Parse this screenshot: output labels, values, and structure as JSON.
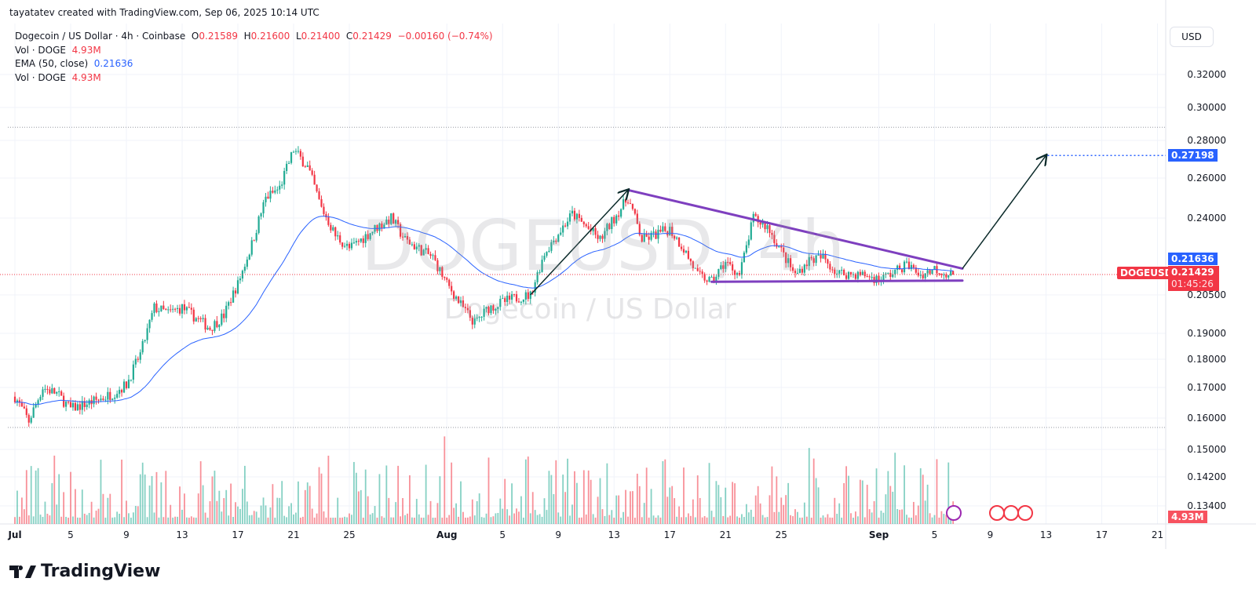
{
  "credit": "tayatatev created with TradingView.com, Sep 06, 2025 10:14 UTC",
  "legend": {
    "symbol": "Dogecoin / US Dollar · 4h · Coinbase",
    "o_label": "O",
    "o": "0.21589",
    "h_label": "H",
    "h": "0.21600",
    "l_label": "L",
    "l": "0.21400",
    "c_label": "C",
    "c": "0.21429",
    "change": "−0.00160 (−0.74%)",
    "vol_label": "Vol · DOGE",
    "vol": "4.93M",
    "ema_label": "EMA (50, close)",
    "ema": "0.21636",
    "vol2_label": "Vol · DOGE",
    "vol2": "4.93M"
  },
  "watermark": {
    "ticker": "DOGEUSD, 4h",
    "name": "Dogecoin / US Dollar"
  },
  "currency": "USD",
  "tags": {
    "target": "0.27198",
    "ema": "0.21636",
    "symbol": "DOGEUSD",
    "price": "0.21429",
    "countdown": "01:45:26",
    "volume": "4.93M"
  },
  "footer": {
    "brand": "TradingView"
  },
  "colors": {
    "up": "#22ab94",
    "down": "#f23645",
    "ema": "#2962ff",
    "pattern": "#7e3fbf",
    "arrow": "#0b2a2a"
  },
  "chart_data": {
    "type": "candlestick",
    "timeframe": "4h",
    "y_scale": "log",
    "y_ticks": [
      "0.32000",
      "0.30000",
      "0.28000",
      "0.26000",
      "0.24000",
      "0.20500",
      "0.19000",
      "0.18000",
      "0.17000",
      "0.16000",
      "0.15000",
      "0.14200",
      "0.13400"
    ],
    "x_ticks": [
      "Jul",
      "5",
      "9",
      "13",
      "17",
      "21",
      "25",
      "Aug",
      "5",
      "9",
      "13",
      "17",
      "21",
      "25",
      "Sep",
      "5",
      "9",
      "13",
      "17",
      "21"
    ],
    "price_path": [
      [
        "2025-07-01",
        0.167
      ],
      [
        "2025-07-02",
        0.159
      ],
      [
        "2025-07-03",
        0.17
      ],
      [
        "2025-07-04",
        0.168
      ],
      [
        "2025-07-05",
        0.163
      ],
      [
        "2025-07-07",
        0.166
      ],
      [
        "2025-07-08",
        0.168
      ],
      [
        "2025-07-09",
        0.171
      ],
      [
        "2025-07-10",
        0.182
      ],
      [
        "2025-07-11",
        0.2
      ],
      [
        "2025-07-12",
        0.198
      ],
      [
        "2025-07-13",
        0.2
      ],
      [
        "2025-07-15",
        0.192
      ],
      [
        "2025-07-16",
        0.197
      ],
      [
        "2025-07-17",
        0.21
      ],
      [
        "2025-07-18",
        0.228
      ],
      [
        "2025-07-19",
        0.25
      ],
      [
        "2025-07-20",
        0.255
      ],
      [
        "2025-07-21",
        0.275
      ],
      [
        "2025-07-22",
        0.266
      ],
      [
        "2025-07-23",
        0.245
      ],
      [
        "2025-07-24",
        0.232
      ],
      [
        "2025-07-25",
        0.226
      ],
      [
        "2025-07-27",
        0.236
      ],
      [
        "2025-07-28",
        0.24
      ],
      [
        "2025-07-29",
        0.23
      ],
      [
        "2025-07-31",
        0.222
      ],
      [
        "2025-08-01",
        0.21
      ],
      [
        "2025-08-02",
        0.201
      ],
      [
        "2025-08-03",
        0.194
      ],
      [
        "2025-08-04",
        0.2
      ],
      [
        "2025-08-06",
        0.204
      ],
      [
        "2025-08-07",
        0.205
      ],
      [
        "2025-08-08",
        0.224
      ],
      [
        "2025-08-10",
        0.242
      ],
      [
        "2025-08-11",
        0.236
      ],
      [
        "2025-08-12",
        0.23
      ],
      [
        "2025-08-13",
        0.24
      ],
      [
        "2025-08-14",
        0.25
      ],
      [
        "2025-08-15",
        0.23
      ],
      [
        "2025-08-17",
        0.235
      ],
      [
        "2025-08-18",
        0.226
      ],
      [
        "2025-08-19",
        0.214
      ],
      [
        "2025-08-20",
        0.211
      ],
      [
        "2025-08-21",
        0.22
      ],
      [
        "2025-08-22",
        0.214
      ],
      [
        "2025-08-23",
        0.24
      ],
      [
        "2025-08-24",
        0.236
      ],
      [
        "2025-08-25",
        0.225
      ],
      [
        "2025-08-26",
        0.214
      ],
      [
        "2025-08-27",
        0.221
      ],
      [
        "2025-08-28",
        0.222
      ],
      [
        "2025-08-29",
        0.215
      ],
      [
        "2025-08-31",
        0.214
      ],
      [
        "2025-09-01",
        0.212
      ],
      [
        "2025-09-02",
        0.215
      ],
      [
        "2025-09-03",
        0.219
      ],
      [
        "2025-09-04",
        0.214
      ],
      [
        "2025-09-05",
        0.217
      ],
      [
        "2025-09-06",
        0.2143
      ]
    ],
    "last": {
      "open": 0.21589,
      "high": 0.216,
      "low": 0.214,
      "close": 0.21429,
      "volume": "4.93M"
    },
    "ema": {
      "period": 50,
      "last": 0.21636
    },
    "period_high": 0.288,
    "period_low": 0.157,
    "drawings": {
      "upper_trendline": [
        [
          "2025-08-14",
          0.254
        ],
        [
          "2025-09-07",
          0.217
        ]
      ],
      "lower_trendline": [
        [
          "2025-08-20",
          0.211
        ],
        [
          "2025-09-07",
          0.2115
        ]
      ],
      "prior_move_arrow": [
        [
          "2025-08-07",
          0.205
        ],
        [
          "2025-08-14",
          0.254
        ]
      ],
      "projection_arrow": [
        [
          "2025-09-07",
          0.217
        ],
        [
          "2025-09-13",
          0.272
        ]
      ],
      "target": 0.27198
    }
  }
}
